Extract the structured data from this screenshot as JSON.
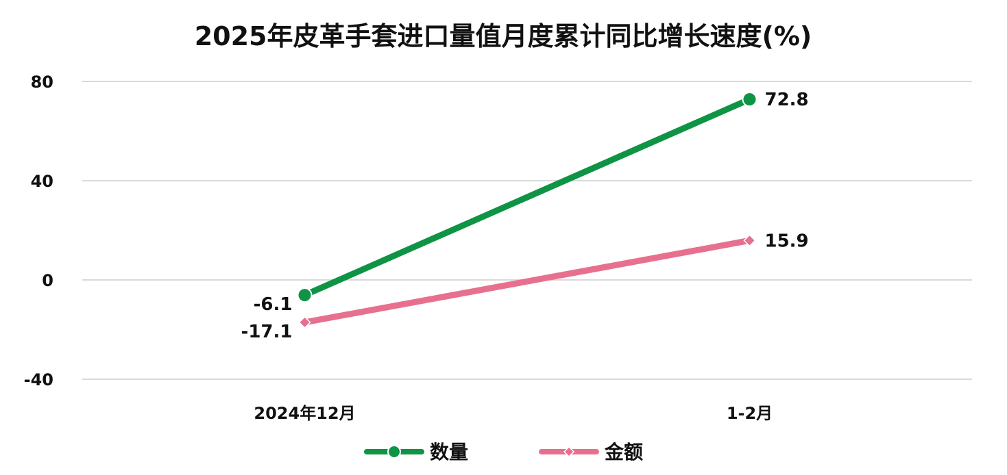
{
  "chart_data": {
    "type": "line",
    "title": "2025年皮革手套进口量值月度累计同比增长速度(%)",
    "categories": [
      "2024年12月",
      "1-2月"
    ],
    "series": [
      {
        "name": "数量",
        "values": [
          -6.1,
          72.8
        ],
        "color": "#0e9444",
        "marker": "circle"
      },
      {
        "name": "金额",
        "values": [
          -17.1,
          15.9
        ],
        "color": "#e8708f",
        "marker": "diamond"
      }
    ],
    "ylim": [
      -40,
      80
    ],
    "yticks": [
      80,
      40,
      0,
      -40
    ],
    "grid": true,
    "legend": "bottom-center",
    "xlabel": "",
    "ylabel": ""
  }
}
